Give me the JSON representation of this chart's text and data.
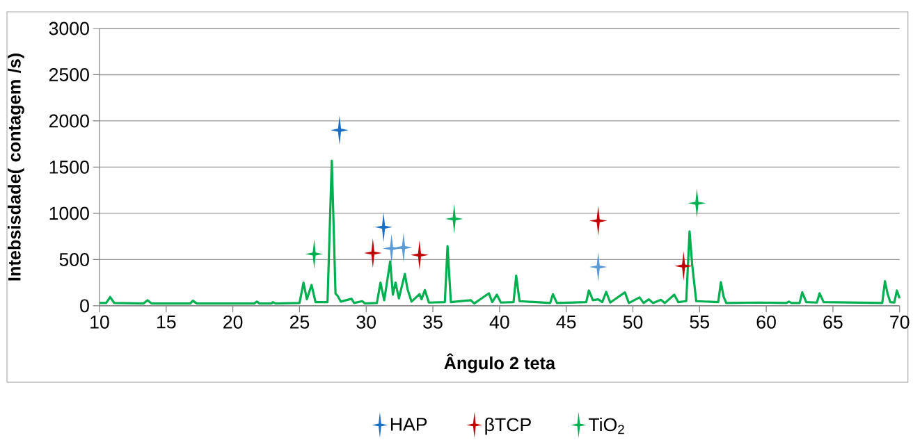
{
  "chart_data": {
    "type": "line",
    "xlabel": "Ângulo 2 teta",
    "ylabel": "Intebsisdade( contagem /s)",
    "xlim": [
      10,
      70
    ],
    "xticks": [
      10,
      15,
      20,
      25,
      30,
      35,
      40,
      45,
      50,
      55,
      60,
      65,
      70
    ],
    "ylim": [
      0,
      3000
    ],
    "yticks": [
      0,
      500,
      1000,
      1500,
      2000,
      2500,
      3000
    ],
    "grid": "y",
    "legend": "bottom",
    "series": [
      {
        "color": "#00b050",
        "marker": "none",
        "x": [
          10,
          10.5,
          10.8,
          11.1,
          13.3,
          13.6,
          13.9,
          16.8,
          17.0,
          17.3,
          21.6,
          21.8,
          22.0,
          22.9,
          23.0,
          23.2,
          25.0,
          25.3,
          25.55,
          25.9,
          26.2,
          27.1,
          27.42,
          27.7,
          27.85,
          28.1,
          28.9,
          29.1,
          29.7,
          29.9,
          30.8,
          31.07,
          31.35,
          31.8,
          32.0,
          32.2,
          32.45,
          32.9,
          33.1,
          33.4,
          34.0,
          34.15,
          34.4,
          34.7,
          35.9,
          36.1,
          36.35,
          37.85,
          38.1,
          39.2,
          39.45,
          39.8,
          40.1,
          41.05,
          41.25,
          41.5,
          43.8,
          44.0,
          44.3,
          46.5,
          46.7,
          47.0,
          47.4,
          47.7,
          48.0,
          48.3,
          49.4,
          49.7,
          50.5,
          50.8,
          51.2,
          51.5,
          52.1,
          52.4,
          53.1,
          53.4,
          54.0,
          54.25,
          54.45,
          54.75,
          56.4,
          56.6,
          56.8,
          57.0,
          59.5,
          61.5,
          61.7,
          61.9,
          62.5,
          62.7,
          63.0,
          63.8,
          64.0,
          64.3,
          68.7,
          68.9,
          69.1,
          69.3,
          69.6,
          69.8,
          70.0
        ],
        "values": [
          30,
          30,
          95,
          30,
          25,
          60,
          25,
          25,
          55,
          25,
          25,
          45,
          25,
          25,
          40,
          25,
          30,
          250,
          70,
          225,
          40,
          40,
          1570,
          130,
          110,
          45,
          75,
          30,
          50,
          25,
          30,
          250,
          60,
          480,
          120,
          250,
          80,
          345,
          180,
          45,
          125,
          70,
          170,
          35,
          40,
          645,
          40,
          60,
          25,
          135,
          40,
          120,
          35,
          40,
          325,
          50,
          30,
          125,
          30,
          40,
          165,
          60,
          70,
          40,
          150,
          35,
          145,
          30,
          90,
          30,
          70,
          30,
          65,
          30,
          120,
          40,
          50,
          805,
          440,
          50,
          40,
          255,
          100,
          30,
          35,
          30,
          45,
          30,
          30,
          145,
          40,
          35,
          135,
          40,
          30,
          265,
          130,
          40,
          35,
          165,
          80
        ]
      },
      {
        "type": "scatter",
        "name": "HAP",
        "color": "#1a6fc4",
        "marker": "star",
        "x": [
          28.0,
          31.3,
          31.9,
          32.8,
          47.4
        ],
        "values": [
          1900,
          850,
          620,
          630,
          420
        ],
        "colors": [
          "#1a6fc4",
          "#1a6fc4",
          "#5b9bd5",
          "#5b9bd5",
          "#5b9bd5"
        ]
      },
      {
        "type": "scatter",
        "name": "βTCP",
        "color": "#c00000",
        "marker": "star",
        "x": [
          30.5,
          34.0,
          47.4,
          53.8
        ],
        "values": [
          570,
          550,
          920,
          430
        ]
      },
      {
        "type": "scatter",
        "name": "TiO$_{2}$",
        "color": "#00b050",
        "marker": "star",
        "x": [
          26.1,
          36.6,
          54.8
        ],
        "values": [
          560,
          940,
          1110
        ]
      }
    ]
  }
}
